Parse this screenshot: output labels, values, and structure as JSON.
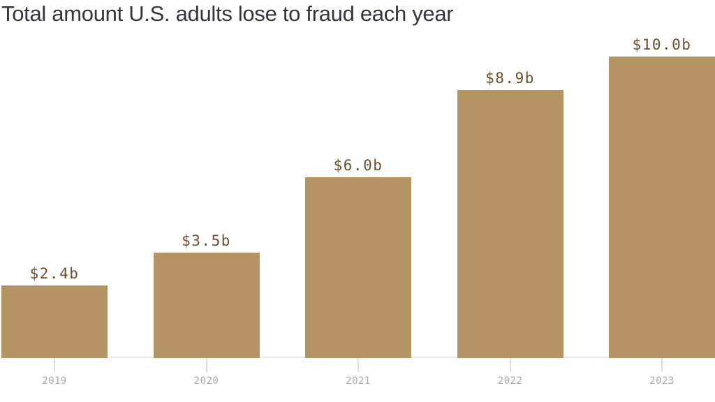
{
  "header": {
    "title": "Total amount U.S. adults lose to fraud each year"
  },
  "colors": {
    "bar": "#b49364",
    "value_label": "#6d4f2e",
    "axis_label": "#a9aaad",
    "axis_line": "#e9e9e9",
    "tick": "#dedede",
    "title": "#32353a"
  },
  "chart_data": {
    "type": "bar",
    "title": "Total amount U.S. adults lose to fraud each year",
    "categories": [
      "2019",
      "2020",
      "2021",
      "2022",
      "2023"
    ],
    "values": [
      2.4,
      3.5,
      6.0,
      8.9,
      10.0
    ],
    "value_labels": [
      "$2.4b",
      "$3.5b",
      "$6.0b",
      "$8.9b",
      "$10.0b"
    ],
    "xlabel": "",
    "ylabel": "",
    "ylim": [
      0,
      10
    ],
    "grid": false,
    "legend": "none",
    "bar_orientation": "vertical"
  }
}
